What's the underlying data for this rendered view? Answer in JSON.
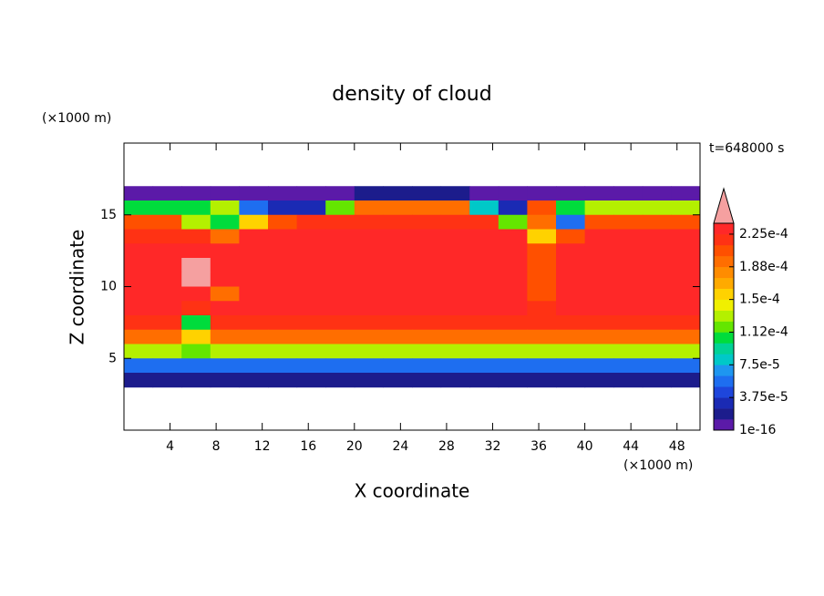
{
  "chart_data": {
    "type": "contour",
    "title": "density of cloud",
    "x_label": "X coordinate",
    "y_label": "Z coordinate",
    "x_unit": "(×1000 m)",
    "y_unit": "(×1000 m)",
    "time_label": "t=648000 s",
    "xlim": [
      0,
      50
    ],
    "ylim": [
      0,
      20
    ],
    "xticks": [
      4,
      8,
      12,
      16,
      20,
      24,
      28,
      32,
      36,
      40,
      44,
      48
    ],
    "yticks": [
      5,
      10,
      15
    ],
    "x": [
      1.25,
      3.75,
      6.25,
      8.75,
      11.25,
      13.75,
      16.25,
      18.75,
      21.25,
      23.75,
      26.25,
      28.75,
      31.25,
      33.75,
      36.25,
      38.75,
      41.25,
      43.75,
      46.25,
      48.75
    ],
    "z": [
      16.5,
      15.5,
      14.5,
      13.5,
      12.5,
      11.5,
      10.5,
      9.5,
      8.5,
      7.5,
      6.5,
      5.5,
      4.5,
      3.5
    ],
    "values": [
      [
        1e-05,
        1e-05,
        1e-05,
        1e-05,
        1e-05,
        1e-05,
        1e-05,
        1e-05,
        2e-05,
        2e-05,
        2e-05,
        2e-05,
        1e-05,
        1e-05,
        1e-05,
        1e-05,
        1e-05,
        1e-05,
        1e-05,
        1e-05
      ],
      [
        0.00011,
        0.00011,
        0.00011,
        0.00013,
        5e-05,
        3e-05,
        3e-05,
        0.00012,
        0.00019,
        0.00019,
        0.00019,
        0.00019,
        8e-05,
        3e-05,
        0.00021,
        0.0001,
        0.00013,
        0.00013,
        0.00013,
        0.00013
      ],
      [
        0.0002,
        0.0002,
        0.00013,
        0.00011,
        0.00016,
        0.00021,
        0.00022,
        0.00022,
        0.00022,
        0.00022,
        0.00022,
        0.00022,
        0.00022,
        0.00012,
        0.00019,
        6e-05,
        0.00021,
        0.00021,
        0.00021,
        0.00021
      ],
      [
        0.00022,
        0.00022,
        0.00022,
        0.00019,
        0.00023,
        0.00023,
        0.00023,
        0.00023,
        0.00023,
        0.00023,
        0.00023,
        0.00023,
        0.00023,
        0.00023,
        0.00016,
        0.0002,
        0.00023,
        0.00023,
        0.00023,
        0.00023
      ],
      [
        0.00023,
        0.00023,
        0.00023,
        0.00023,
        0.00023,
        0.00023,
        0.00023,
        0.00023,
        0.00023,
        0.00023,
        0.00023,
        0.00023,
        0.00023,
        0.00023,
        0.0002,
        0.00023,
        0.00023,
        0.00023,
        0.00023,
        0.00023
      ],
      [
        0.00023,
        0.00023,
        0.000245,
        0.00023,
        0.00023,
        0.00023,
        0.00023,
        0.00023,
        0.00023,
        0.00023,
        0.00023,
        0.00023,
        0.00023,
        0.00023,
        0.0002,
        0.00023,
        0.00023,
        0.00023,
        0.00023,
        0.00023
      ],
      [
        0.00023,
        0.00023,
        0.000245,
        0.00023,
        0.00023,
        0.00023,
        0.00023,
        0.00023,
        0.00023,
        0.00023,
        0.00023,
        0.00023,
        0.00023,
        0.00023,
        0.0002,
        0.00023,
        0.00023,
        0.00023,
        0.00023,
        0.00023
      ],
      [
        0.00023,
        0.00023,
        0.00023,
        0.00019,
        0.00023,
        0.00023,
        0.00023,
        0.00023,
        0.00023,
        0.00023,
        0.00023,
        0.00023,
        0.00023,
        0.00023,
        0.0002,
        0.00023,
        0.00023,
        0.00023,
        0.00023,
        0.00023
      ],
      [
        0.00023,
        0.00023,
        0.00022,
        0.00023,
        0.00023,
        0.00023,
        0.00023,
        0.00023,
        0.00023,
        0.00023,
        0.00023,
        0.00023,
        0.00023,
        0.00023,
        0.00022,
        0.00023,
        0.00023,
        0.00023,
        0.00023,
        0.00023
      ],
      [
        0.000215,
        0.000215,
        0.0001,
        0.000215,
        0.000215,
        0.000215,
        0.000215,
        0.000215,
        0.000215,
        0.000215,
        0.000215,
        0.000215,
        0.000215,
        0.000215,
        0.000215,
        0.000215,
        0.000215,
        0.000215,
        0.000215,
        0.000215
      ],
      [
        0.00019,
        0.00019,
        0.00015,
        0.00019,
        0.00019,
        0.00019,
        0.00019,
        0.00019,
        0.00019,
        0.00019,
        0.00019,
        0.00019,
        0.00019,
        0.00019,
        0.00019,
        0.00019,
        0.00019,
        0.00019,
        0.00019,
        0.00019
      ],
      [
        0.00013,
        0.00013,
        0.00012,
        0.00013,
        0.00013,
        0.00013,
        0.00013,
        0.00013,
        0.00013,
        0.00013,
        0.00013,
        0.00013,
        0.00013,
        0.00013,
        0.00013,
        0.00013,
        0.00013,
        0.00013,
        0.00013,
        0.00013
      ],
      [
        6e-05,
        6e-05,
        6e-05,
        6e-05,
        6e-05,
        6e-05,
        6e-05,
        6e-05,
        6e-05,
        6e-05,
        6e-05,
        6e-05,
        6e-05,
        6e-05,
        6e-05,
        6e-05,
        6e-05,
        6e-05,
        6e-05,
        6e-05
      ],
      [
        2e-05,
        2e-05,
        2e-05,
        2e-05,
        2e-05,
        2e-05,
        2e-05,
        2e-05,
        2e-05,
        2e-05,
        2e-05,
        2e-05,
        2e-05,
        2e-05,
        2e-05,
        2e-05,
        2e-05,
        2e-05,
        2e-05,
        2e-05
      ]
    ],
    "levels": [
      1e-16,
      1.25e-05,
      2.5e-05,
      3.75e-05,
      5e-05,
      6.25e-05,
      7.5e-05,
      8.75e-05,
      0.0001,
      0.0001125,
      0.000125,
      0.0001375,
      0.00015,
      0.0001625,
      0.000175,
      0.0001875,
      0.0002,
      0.0002125,
      0.000225,
      0.0002375
    ],
    "colors": [
      "#5b1aa8",
      "#1c1c8c",
      "#1a2ab4",
      "#1e46dc",
      "#1e6ef0",
      "#1e96f0",
      "#00c8c8",
      "#00d296",
      "#00dc3c",
      "#64e600",
      "#b4f000",
      "#f0f000",
      "#ffd200",
      "#ffaa00",
      "#ff8c00",
      "#ff6e00",
      "#ff5000",
      "#ff3214",
      "#ff2828",
      "#f5a0a0"
    ],
    "colorbar_ticks": [
      {
        "value": 1e-16,
        "label": "1e-16"
      },
      {
        "value": 3.75e-05,
        "label": "3.75e-5"
      },
      {
        "value": 7.5e-05,
        "label": "7.5e-5"
      },
      {
        "value": 0.0001125,
        "label": "1.12e-4"
      },
      {
        "value": 0.00015,
        "label": "1.5e-4"
      },
      {
        "value": 0.0001875,
        "label": "1.88e-4"
      },
      {
        "value": 0.000225,
        "label": "2.25e-4"
      }
    ]
  }
}
